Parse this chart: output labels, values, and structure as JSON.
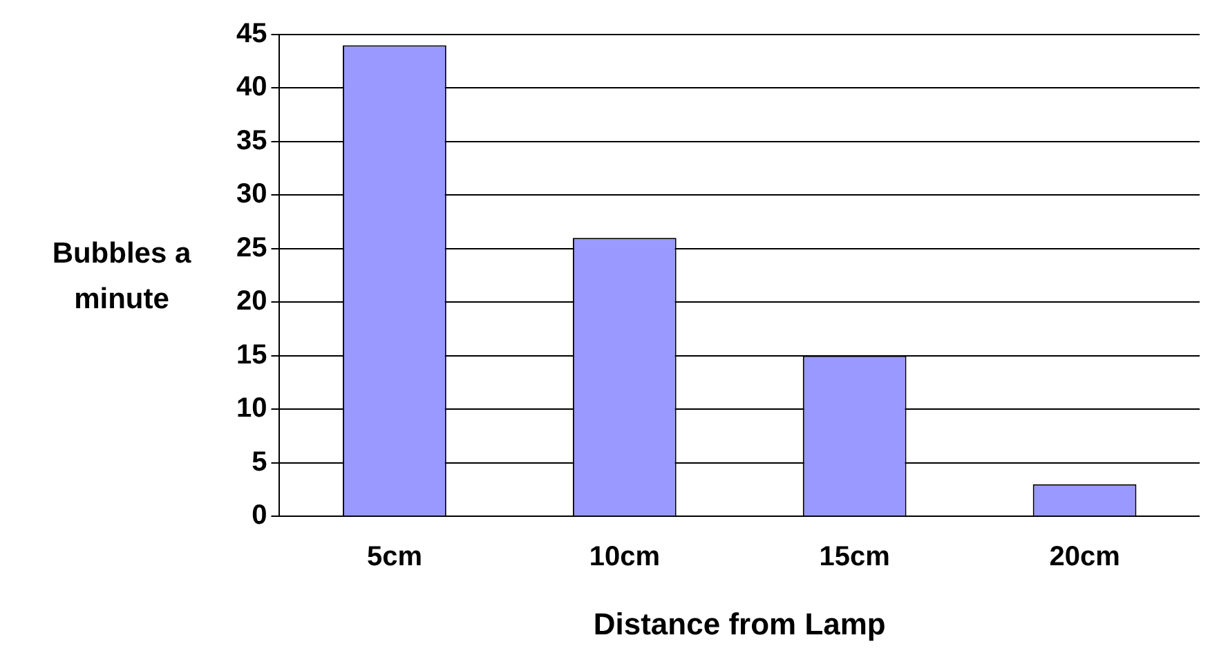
{
  "chart_data": {
    "type": "bar",
    "xlabel": "Distance from Lamp",
    "ylabel": "Bubbles a minute",
    "categories": [
      "5cm",
      "10cm",
      "15cm",
      "20cm"
    ],
    "values": [
      44,
      26,
      15,
      3
    ],
    "color": "#9999ff",
    "ylim": [
      0,
      45
    ],
    "yticks": [
      0,
      5,
      10,
      15,
      20,
      25,
      30,
      35,
      40,
      45
    ],
    "grid": "y",
    "legend": false
  }
}
